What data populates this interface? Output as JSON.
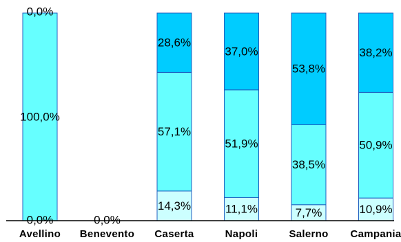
{
  "chart_data": {
    "type": "bar",
    "stacked": true,
    "percent_stacked": true,
    "categories": [
      "Avellino",
      "Benevento",
      "Caserta",
      "Napoli",
      "Salerno",
      "Campania"
    ],
    "series": [
      {
        "values": [
          0.0,
          0.0,
          14.3,
          11.1,
          7.7,
          10.9
        ],
        "labels": [
          "0,0%",
          "0,0%",
          "14,3%",
          "11,1%",
          "7,7%",
          "10,9%"
        ],
        "color": "#ccffff"
      },
      {
        "values": [
          100.0,
          0.0,
          57.1,
          51.9,
          38.5,
          50.9
        ],
        "labels": [
          "100,0%",
          "",
          "57,1%",
          "51,9%",
          "38,5%",
          "50,9%"
        ],
        "color": "#66ffff"
      },
      {
        "values": [
          0.0,
          0.0,
          28.6,
          37.0,
          53.8,
          38.2
        ],
        "labels": [
          "0,0%",
          "",
          "28,6%",
          "37,0%",
          "53,8%",
          "38,2%"
        ],
        "color": "#00ccff"
      }
    ],
    "ylim": [
      0,
      100
    ],
    "grid": false,
    "legend": "none",
    "title": "",
    "xlabel": "",
    "ylabel": "",
    "colors": {
      "border": "#1f5fbf",
      "axis": "#000000"
    }
  }
}
